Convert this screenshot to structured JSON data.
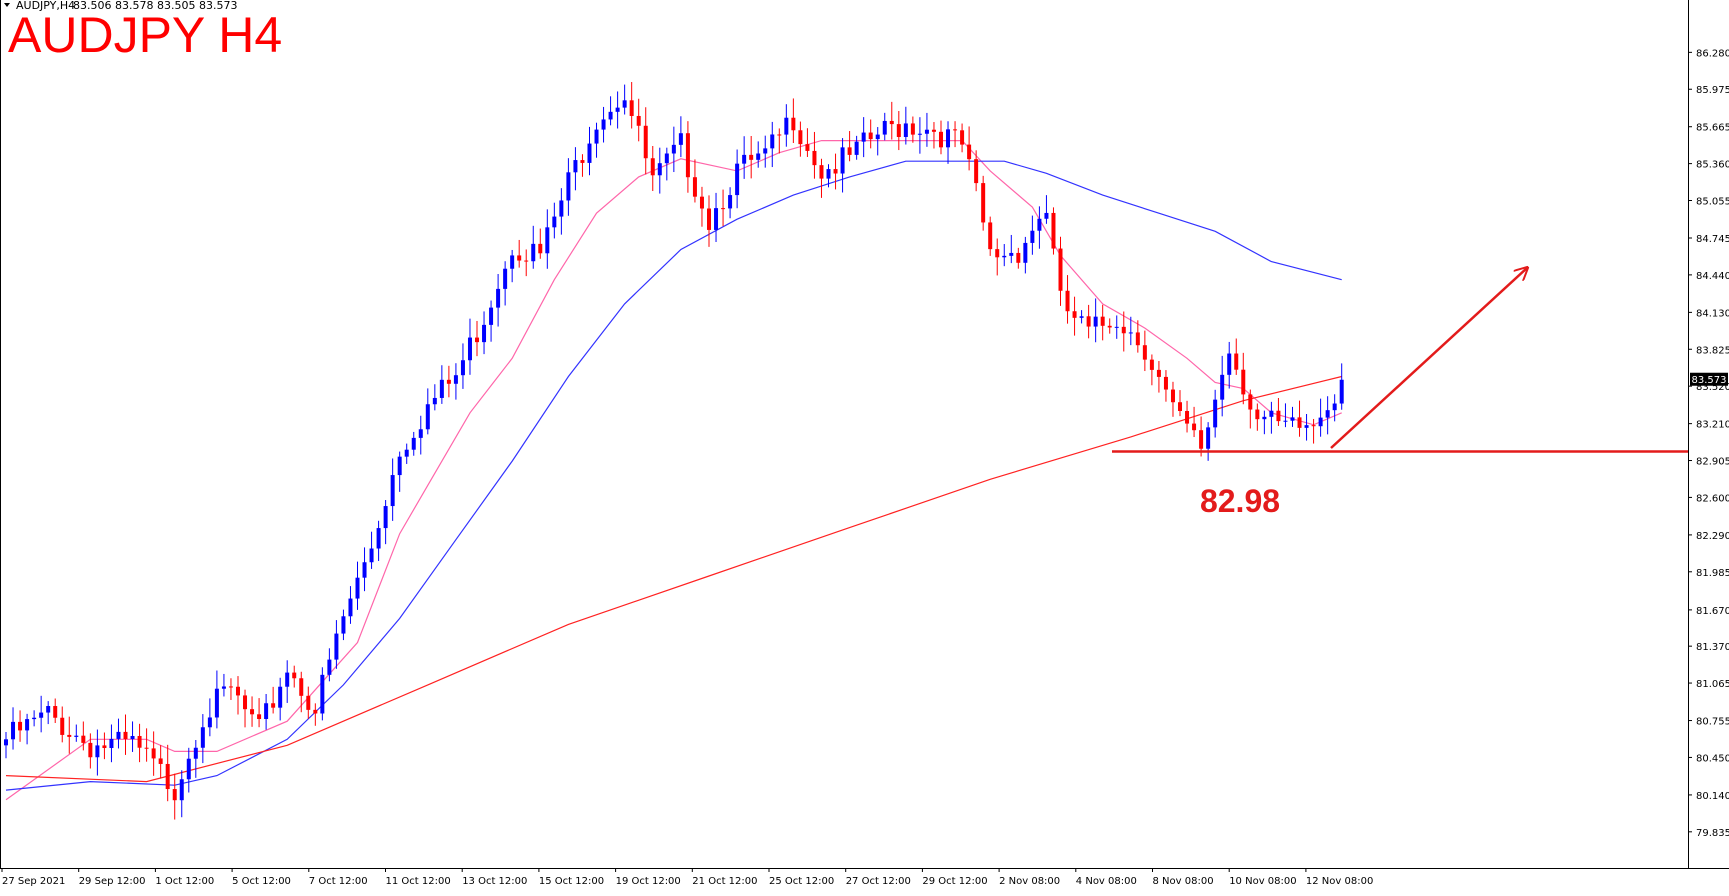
{
  "header": {
    "symbol_info": "AUDJPY,H4",
    "ohlc": "83.506 83.578 83.505 83.573",
    "title": "AUDJPY H4"
  },
  "colors": {
    "bull": "#0000ff",
    "bear": "#ff0000",
    "ma_fast": "#ff66aa",
    "ma_mid": "#3333ff",
    "ma_slow": "#ff2222",
    "annotation": "#e31b1b",
    "axis": "#000000",
    "current_bg": "#000000"
  },
  "chart_data": {
    "type": "candlestick",
    "title": "AUDJPY H4",
    "ylim": [
      79.635,
      86.44
    ],
    "price_ticks": [
      "86.280",
      "85.975",
      "85.665",
      "85.360",
      "85.055",
      "84.745",
      "84.440",
      "84.130",
      "83.825",
      "83.520",
      "83.210",
      "82.905",
      "82.600",
      "82.290",
      "81.985",
      "81.670",
      "81.370",
      "81.065",
      "80.755",
      "80.450",
      "80.140",
      "79.835"
    ],
    "time_ticks": [
      "27 Sep 2021",
      "29 Sep 12:00",
      "1 Oct 12:00",
      "5 Oct 12:00",
      "7 Oct 12:00",
      "11 Oct 12:00",
      "13 Oct 12:00",
      "15 Oct 12:00",
      "19 Oct 12:00",
      "21 Oct 12:00",
      "25 Oct 12:00",
      "27 Oct 12:00",
      "29 Oct 12:00",
      "2 Nov 08:00",
      "4 Nov 08:00",
      "8 Nov 08:00",
      "10 Nov 08:00",
      "12 Nov 08:00"
    ],
    "current_price": "83.573",
    "support_level": {
      "value": 82.98,
      "label": "82.98"
    },
    "close_keypoints": [
      [
        0,
        80.6
      ],
      [
        6,
        80.8
      ],
      [
        12,
        80.55
      ],
      [
        18,
        80.55
      ],
      [
        24,
        80.2
      ],
      [
        28,
        80.8
      ],
      [
        32,
        81.0
      ],
      [
        36,
        80.65
      ],
      [
        40,
        81.2
      ],
      [
        44,
        80.85
      ],
      [
        48,
        81.6
      ],
      [
        52,
        82.2
      ],
      [
        56,
        83.0
      ],
      [
        60,
        83.35
      ],
      [
        64,
        83.6
      ],
      [
        68,
        84.1
      ],
      [
        72,
        84.7
      ],
      [
        76,
        84.6
      ],
      [
        80,
        85.2
      ],
      [
        84,
        85.75
      ],
      [
        88,
        85.95
      ],
      [
        92,
        85.2
      ],
      [
        96,
        85.5
      ],
      [
        100,
        84.9
      ],
      [
        104,
        85.3
      ],
      [
        108,
        85.4
      ],
      [
        112,
        85.75
      ],
      [
        116,
        85.3
      ],
      [
        120,
        85.4
      ],
      [
        124,
        85.6
      ],
      [
        128,
        85.7
      ],
      [
        132,
        85.65
      ],
      [
        136,
        85.5
      ],
      [
        138,
        85.1
      ],
      [
        140,
        84.6
      ],
      [
        144,
        84.65
      ],
      [
        148,
        85.0
      ],
      [
        150,
        84.2
      ],
      [
        154,
        83.95
      ],
      [
        158,
        84.1
      ],
      [
        162,
        83.85
      ],
      [
        166,
        83.3
      ],
      [
        170,
        83.0
      ],
      [
        174,
        83.85
      ],
      [
        178,
        83.25
      ],
      [
        182,
        83.15
      ],
      [
        186,
        83.2
      ],
      [
        190,
        83.573
      ]
    ],
    "moving_averages": [
      {
        "color": "#ff66aa",
        "points": [
          [
            0,
            80.1
          ],
          [
            12,
            80.6
          ],
          [
            20,
            80.6
          ],
          [
            24,
            80.5
          ],
          [
            30,
            80.5
          ],
          [
            40,
            80.75
          ],
          [
            50,
            81.4
          ],
          [
            56,
            82.3
          ],
          [
            60,
            82.7
          ],
          [
            66,
            83.3
          ],
          [
            72,
            83.75
          ],
          [
            78,
            84.4
          ],
          [
            84,
            84.95
          ],
          [
            90,
            85.25
          ],
          [
            96,
            85.4
          ],
          [
            104,
            85.3
          ],
          [
            110,
            85.45
          ],
          [
            116,
            85.55
          ],
          [
            122,
            85.55
          ],
          [
            130,
            85.55
          ],
          [
            136,
            85.55
          ],
          [
            140,
            85.3
          ],
          [
            146,
            85.0
          ],
          [
            150,
            84.6
          ],
          [
            156,
            84.2
          ],
          [
            162,
            84.0
          ],
          [
            168,
            83.75
          ],
          [
            172,
            83.55
          ],
          [
            176,
            83.5
          ],
          [
            180,
            83.3
          ],
          [
            186,
            83.2
          ],
          [
            190,
            83.3
          ]
        ]
      },
      {
        "color": "#3333ff",
        "points": [
          [
            0,
            80.18
          ],
          [
            12,
            80.25
          ],
          [
            24,
            80.22
          ],
          [
            30,
            80.3
          ],
          [
            40,
            80.6
          ],
          [
            48,
            81.05
          ],
          [
            56,
            81.6
          ],
          [
            64,
            82.25
          ],
          [
            72,
            82.9
          ],
          [
            80,
            83.6
          ],
          [
            88,
            84.2
          ],
          [
            96,
            84.65
          ],
          [
            104,
            84.9
          ],
          [
            112,
            85.1
          ],
          [
            120,
            85.25
          ],
          [
            128,
            85.38
          ],
          [
            134,
            85.38
          ],
          [
            142,
            85.38
          ],
          [
            148,
            85.28
          ],
          [
            156,
            85.1
          ],
          [
            164,
            84.95
          ],
          [
            172,
            84.8
          ],
          [
            180,
            84.55
          ],
          [
            190,
            84.4
          ]
        ]
      },
      {
        "color": "#ff2222",
        "points": [
          [
            0,
            80.3
          ],
          [
            20,
            80.25
          ],
          [
            40,
            80.55
          ],
          [
            60,
            81.05
          ],
          [
            80,
            81.55
          ],
          [
            100,
            81.95
          ],
          [
            120,
            82.35
          ],
          [
            140,
            82.75
          ],
          [
            160,
            83.1
          ],
          [
            176,
            83.4
          ],
          [
            190,
            83.6
          ]
        ]
      }
    ]
  }
}
